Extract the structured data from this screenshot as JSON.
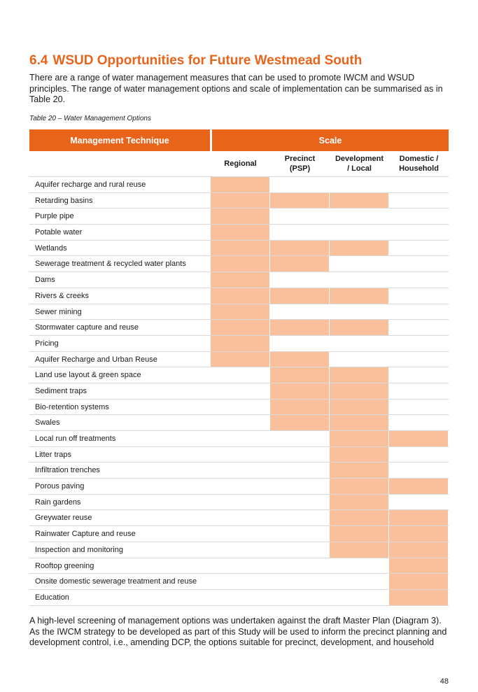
{
  "section": {
    "number": "6.4",
    "title": "WSUD Opportunities for Future Westmead South"
  },
  "intro": "There are a range of water management measures that can be used to promote IWCM and WSUD principles. The range of water management options and scale of implementation can be summarised as in Table 20.",
  "table": {
    "caption": "Table 20 – Water Management Options",
    "header_technique": "Management Technique",
    "header_scale": "Scale",
    "scales": [
      {
        "line1": "Regional",
        "line2": ""
      },
      {
        "line1": "Precinct",
        "line2": "(PSP)"
      },
      {
        "line1": "Development",
        "line2": "/ Local"
      },
      {
        "line1": "Domestic /",
        "line2": "Household"
      }
    ],
    "highlight_color": "#f8c09b",
    "header_color": "#e8641b",
    "rows": [
      {
        "label": "Aquifer recharge and rural reuse",
        "scale": [
          true,
          false,
          false,
          false
        ]
      },
      {
        "label": "Retarding basins",
        "scale": [
          true,
          true,
          true,
          false
        ]
      },
      {
        "label": "Purple pipe",
        "scale": [
          true,
          false,
          false,
          false
        ]
      },
      {
        "label": "Potable water",
        "scale": [
          true,
          false,
          false,
          false
        ]
      },
      {
        "label": "Wetlands",
        "scale": [
          true,
          true,
          true,
          false
        ]
      },
      {
        "label": "Sewerage treatment & recycled water plants",
        "scale": [
          true,
          true,
          false,
          false
        ]
      },
      {
        "label": "Dams",
        "scale": [
          true,
          false,
          false,
          false
        ]
      },
      {
        "label": "Rivers & creeks",
        "scale": [
          true,
          true,
          true,
          false
        ]
      },
      {
        "label": "Sewer mining",
        "scale": [
          true,
          false,
          false,
          false
        ]
      },
      {
        "label": "Stormwater capture and reuse",
        "scale": [
          true,
          true,
          true,
          false
        ]
      },
      {
        "label": "Pricing",
        "scale": [
          true,
          false,
          false,
          false
        ]
      },
      {
        "label": "Aquifer Recharge and Urban Reuse",
        "scale": [
          true,
          true,
          false,
          false
        ]
      },
      {
        "label": "Land use layout & green space",
        "scale": [
          false,
          true,
          true,
          false
        ]
      },
      {
        "label": "Sediment traps",
        "scale": [
          false,
          true,
          true,
          false
        ]
      },
      {
        "label": "Bio-retention systems",
        "scale": [
          false,
          true,
          true,
          false
        ]
      },
      {
        "label": "Swales",
        "scale": [
          false,
          true,
          true,
          false
        ]
      },
      {
        "label": "Local run off treatments",
        "scale": [
          false,
          false,
          true,
          true
        ]
      },
      {
        "label": "Litter traps",
        "scale": [
          false,
          false,
          true,
          false
        ]
      },
      {
        "label": "Infiltration trenches",
        "scale": [
          false,
          false,
          true,
          false
        ]
      },
      {
        "label": "Porous paving",
        "scale": [
          false,
          false,
          true,
          true
        ]
      },
      {
        "label": "Rain gardens",
        "scale": [
          false,
          false,
          true,
          false
        ]
      },
      {
        "label": "Greywater reuse",
        "scale": [
          false,
          false,
          true,
          true
        ]
      },
      {
        "label": "Rainwater Capture and reuse",
        "scale": [
          false,
          false,
          true,
          true
        ]
      },
      {
        "label": "Inspection and monitoring",
        "scale": [
          false,
          false,
          true,
          true
        ]
      },
      {
        "label": "Rooftop greening",
        "scale": [
          false,
          false,
          false,
          true
        ]
      },
      {
        "label": "Onsite domestic sewerage treatment and reuse",
        "scale": [
          false,
          false,
          false,
          true
        ]
      },
      {
        "label": "Education",
        "scale": [
          false,
          false,
          false,
          true
        ]
      }
    ]
  },
  "closing": "A high-level screening of management options was undertaken against the draft Master Plan (Diagram 3). As the IWCM strategy to be developed as part of this Study will be used to inform the precinct planning and development control, i.e., amending DCP, the options suitable for precinct, development, and household",
  "page_number": "48"
}
